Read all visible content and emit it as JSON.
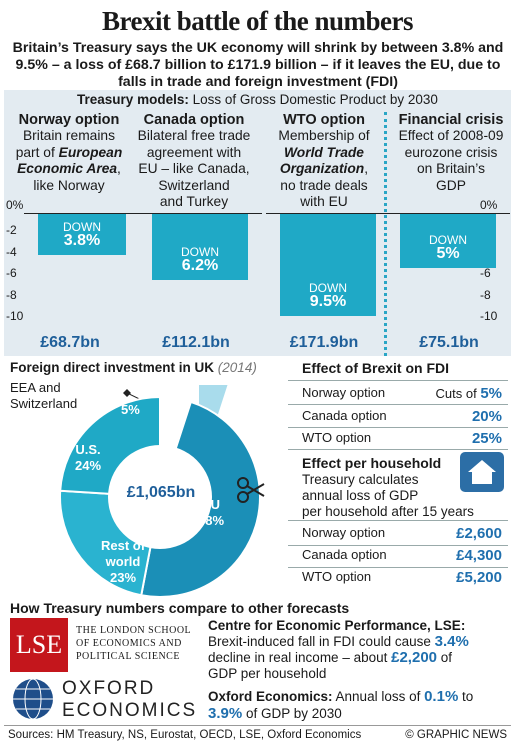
{
  "title": "Brexit battle of the numbers",
  "subtitle": "Britain’s Treasury says the UK economy will shrink by between 3.8% and 9.5% – a loss of £68.7 billion to £171.9 billion – if it leaves the EU, due to falls in trade and foreign investment (FDI)",
  "models": {
    "header_bold": "Treasury models:",
    "header_rest": " Loss of Gross Domestic Product by 2030",
    "options": [
      {
        "title": "Norway option",
        "desc_lines": [
          "Britain remains",
          "part of ",
          "European Economic Area",
          ", like Norway"
        ],
        "down_label": "DOWN",
        "value_label": "3.8%",
        "bn": "£68.7bn"
      },
      {
        "title": "Canada option",
        "desc_lines": [
          "Bilateral free trade",
          "agreement with",
          "EU – like Canada,",
          "Switzerland",
          "and Turkey"
        ],
        "down_label": "DOWN",
        "value_label": "6.2%",
        "bn": "£112.1bn"
      },
      {
        "title": "WTO option",
        "desc_lines": [
          "Membership of",
          "World Trade",
          "Organization",
          ",",
          "no trade deals",
          "with EU"
        ],
        "down_label": "DOWN",
        "value_label": "9.5%",
        "bn": "£171.9bn"
      },
      {
        "title": "Financial crisis",
        "desc_lines": [
          "Effect of 2008-09",
          "eurozone crisis",
          "on Britain’s",
          "GDP"
        ],
        "down_label": "DOWN",
        "value_label": "5%",
        "bn": "£75.1bn"
      }
    ],
    "ticks": [
      "0%",
      "-2",
      "-4",
      "-6",
      "-8",
      "-10"
    ]
  },
  "fdi": {
    "title": "Foreign direct investment in UK",
    "year": "(2014)",
    "center": "£1,065bn",
    "eea_label": "EEA and Switzerland",
    "segments": [
      {
        "label": "EU",
        "pct": "48%"
      },
      {
        "label": "U.S.",
        "pct": "24%"
      },
      {
        "label": "Rest of world",
        "pct": "23%"
      },
      {
        "label": "",
        "pct": "5%"
      }
    ]
  },
  "effect_fdi": {
    "title": "Effect of Brexit on FDI",
    "rows": [
      {
        "label": "Norway option",
        "prefix": "Cuts of ",
        "value": "5%"
      },
      {
        "label": "Canada option",
        "prefix": "",
        "value": "20%"
      },
      {
        "label": "WTO option",
        "prefix": "",
        "value": "25%"
      }
    ]
  },
  "household": {
    "title": "Effect per household",
    "desc": [
      "Treasury calculates",
      "annual loss of GDP",
      "per household after 15 years"
    ],
    "rows": [
      {
        "label": "Norway option",
        "value": "£2,600"
      },
      {
        "label": "Canada option",
        "value": "£4,300"
      },
      {
        "label": "WTO option",
        "value": "£5,200"
      }
    ]
  },
  "compare": {
    "title": "How Treasury numbers compare to other forecasts",
    "lse_logo": "LSE",
    "lse_name": [
      "THE LONDON SCHOOL",
      "OF ECONOMICS AND",
      "POLITICAL SCIENCE"
    ],
    "oxford_logo": [
      "OXFORD",
      "ECONOMICS"
    ],
    "cep_title": "Centre for Economic Performance, LSE:",
    "cep_text": [
      "Brexit-induced fall in FDI could cause ",
      "3.4%",
      "decline in real income – about ",
      "£2,200",
      " of",
      "GDP per household"
    ],
    "ox_title": "Oxford Economics:",
    "ox_text": [
      " Annual loss of ",
      "0.1%",
      " to",
      "3.9%",
      " of GDP by 2030"
    ]
  },
  "footer": {
    "sources": "Sources: HM Treasury, NS, Eurostat, OECD, LSE, Oxford Economics",
    "credit": "© GRAPHIC NEWS"
  },
  "colors": {
    "bar": "#1fa9c6",
    "panel": "#e3ebf1",
    "highlight": "#1f6fae",
    "donut_light": "#a9dcec",
    "donut_dark": "#1b8fb7"
  },
  "chart_data": [
    {
      "type": "bar",
      "title": "Treasury models: Loss of Gross Domestic Product by 2030",
      "categories": [
        "Norway option",
        "Canada option",
        "WTO option",
        "Financial crisis"
      ],
      "values": [
        -3.8,
        -6.2,
        -9.5,
        -5.0
      ],
      "ylim": [
        -10,
        0
      ],
      "data_labels": [
        "£68.7bn",
        "£112.1bn",
        "£171.9bn",
        "£75.1bn"
      ]
    },
    {
      "type": "pie",
      "title": "Foreign direct investment in UK (2014)",
      "categories": [
        "EU",
        "U.S.",
        "Rest of world",
        "EEA and Switzerland"
      ],
      "values": [
        48,
        24,
        23,
        5
      ],
      "total": "£1,065bn"
    }
  ]
}
